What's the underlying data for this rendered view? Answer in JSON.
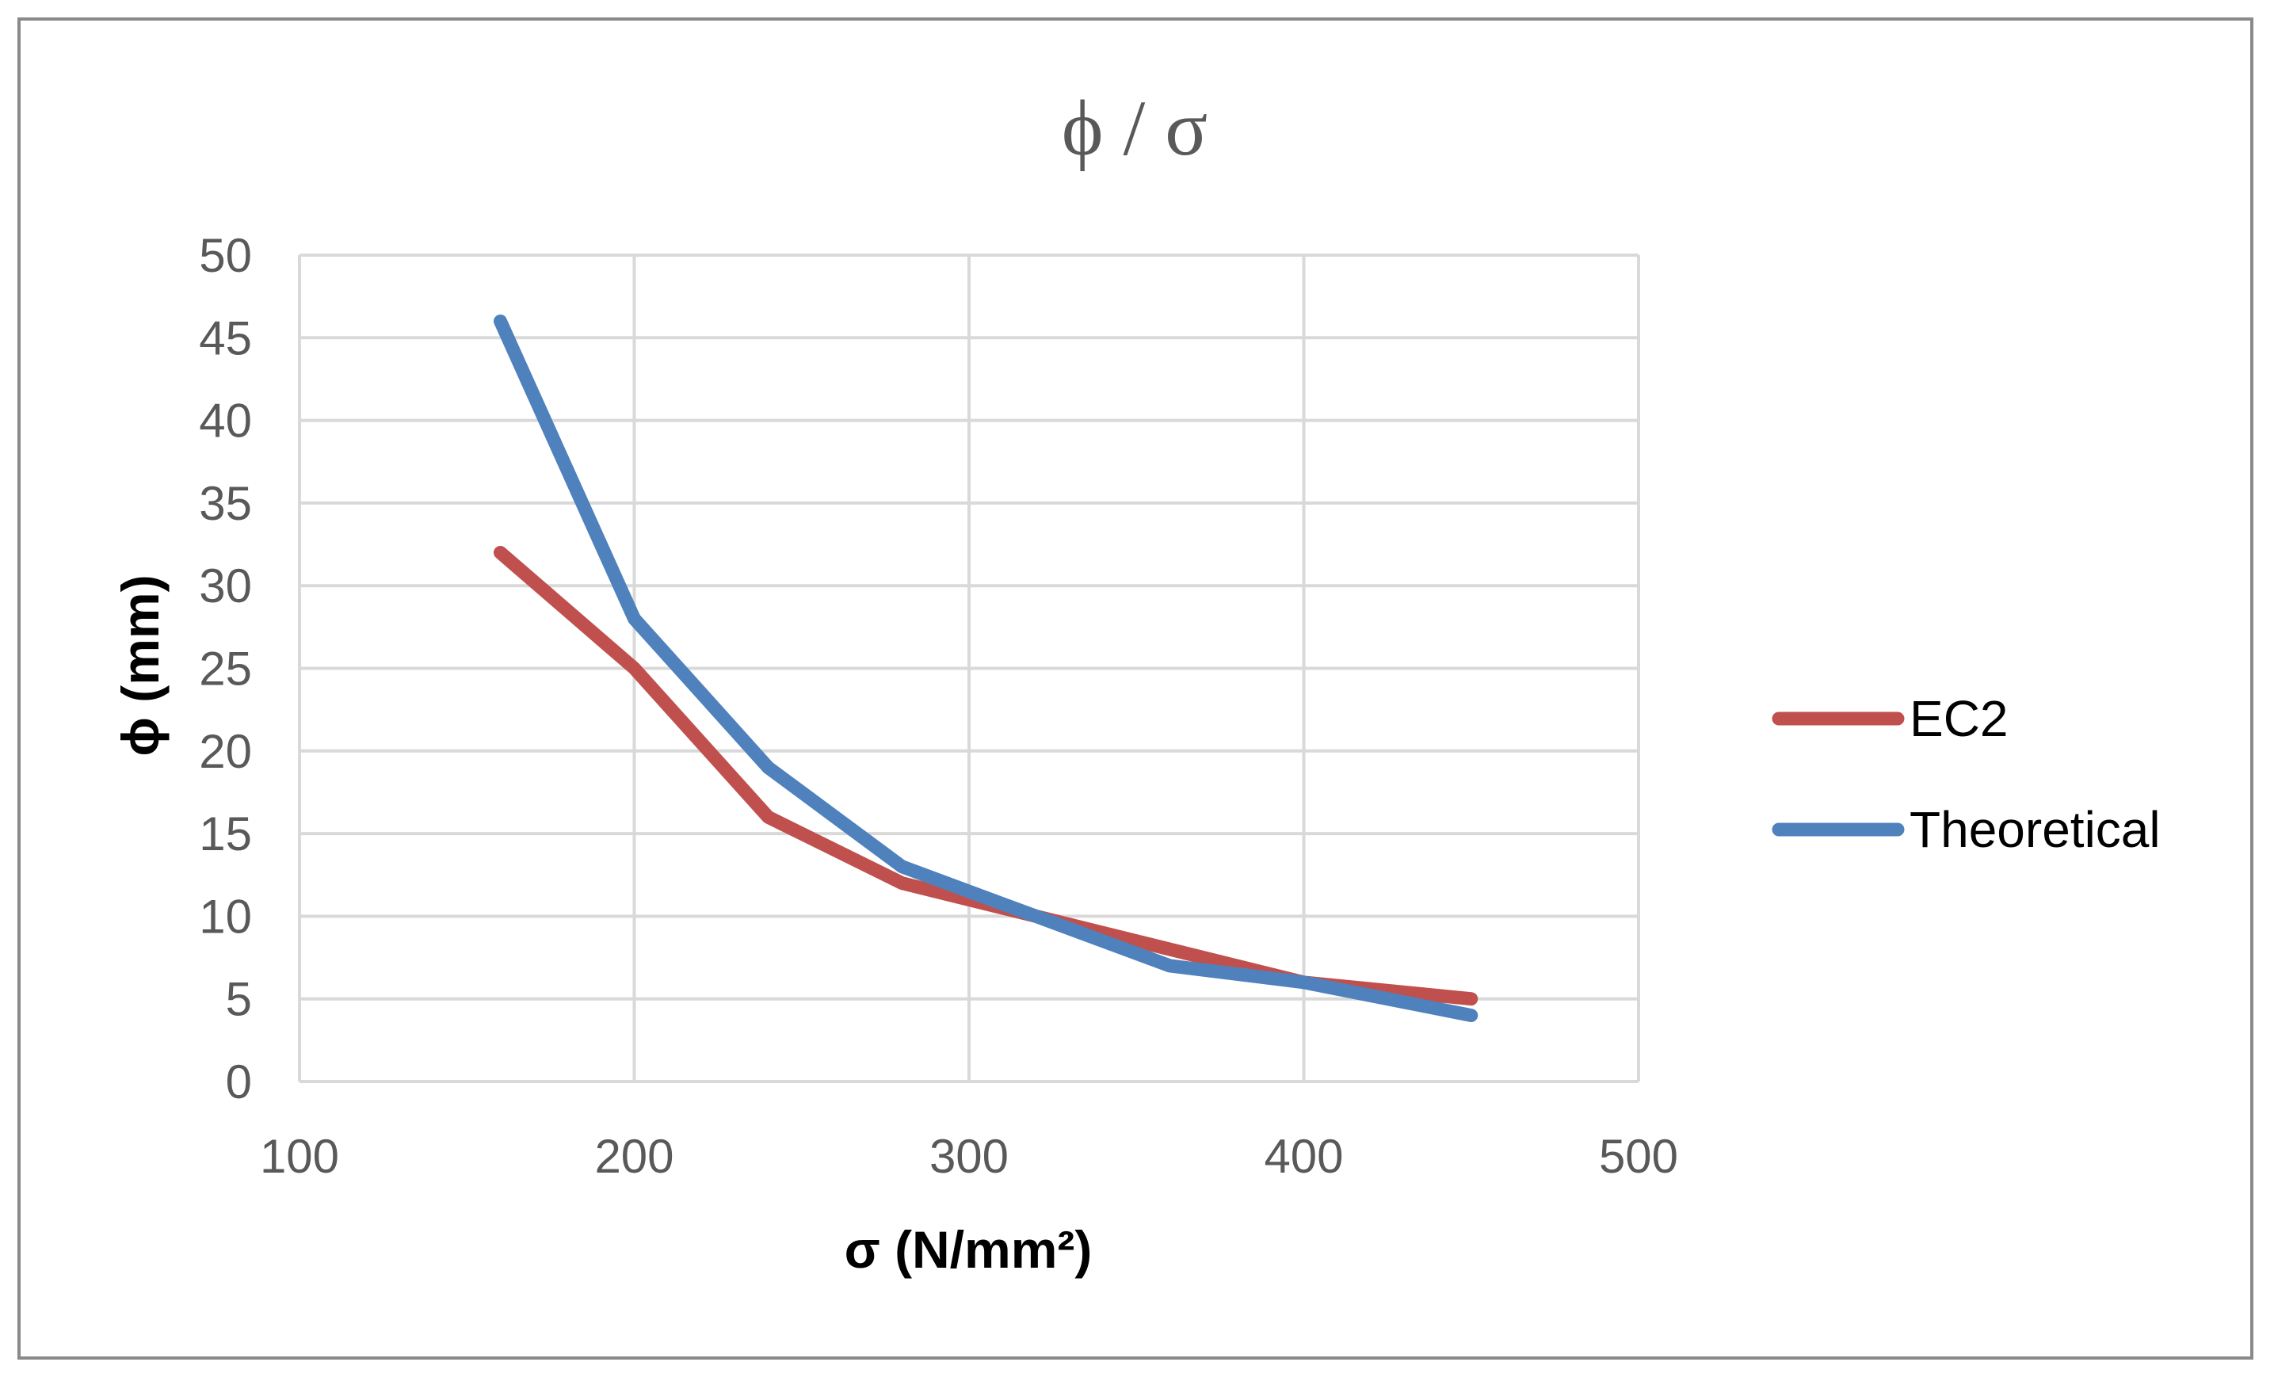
{
  "chart_data": {
    "type": "line",
    "title": "ϕ / σ",
    "xlabel": "σ (N/mm²)",
    "ylabel": "ϕ (mm)",
    "xlim": [
      100,
      500
    ],
    "ylim": [
      0,
      50
    ],
    "x_ticks": [
      100,
      200,
      300,
      400,
      500
    ],
    "y_ticks": [
      0,
      5,
      10,
      15,
      20,
      25,
      30,
      35,
      40,
      45,
      50
    ],
    "grid": true,
    "legend_position": "right",
    "series": [
      {
        "name": "EC2",
        "color": "#c0504d",
        "x": [
          160,
          200,
          240,
          280,
          320,
          360,
          400,
          450
        ],
        "y": [
          32,
          25,
          16,
          12,
          10,
          8,
          6,
          5
        ]
      },
      {
        "name": "Theoretical",
        "color": "#4f81bd",
        "x": [
          160,
          200,
          240,
          280,
          320,
          360,
          400,
          450
        ],
        "y": [
          46,
          28,
          19,
          13,
          10,
          7,
          6,
          4
        ]
      }
    ]
  }
}
